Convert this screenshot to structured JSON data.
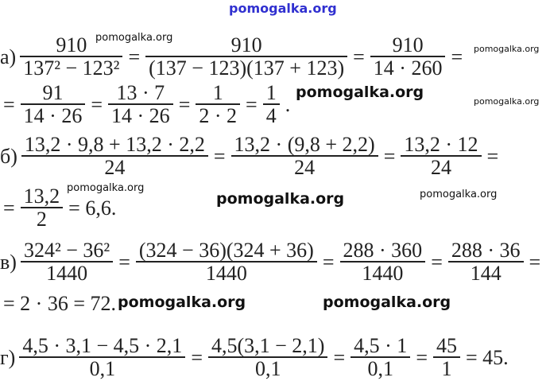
{
  "watermarks": {
    "top": "pomogalka.org",
    "w1": "pomogalka.org",
    "w2": "pomogalka.org",
    "w3": "pomogalka.org",
    "w4": "pomogalka.org",
    "w5": "pomogalka.org",
    "w6": "pomogalka.org",
    "w7": "pomogalka.org",
    "w8": "pomogalka.org",
    "w9": "pomogalka.org"
  },
  "rows": [
    {
      "label": "а)",
      "tokens": [
        {
          "num": "910",
          "den": "137² − 123²"
        },
        "=",
        {
          "num": "910",
          "den": "(137 − 123)(137 + 123)"
        },
        "=",
        {
          "num": "910",
          "den": "14 · 260"
        },
        "="
      ]
    },
    {
      "label": "",
      "tokens": [
        "=",
        {
          "num": "91",
          "den": "14 · 26"
        },
        "=",
        {
          "num": "13 · 7",
          "den": "14 · 26"
        },
        "=",
        {
          "num": "1",
          "den": "2 · 2"
        },
        "=",
        {
          "num": "1",
          "den": "4"
        },
        "."
      ]
    },
    {
      "label": "б)",
      "tokens": [
        {
          "num": "13,2 · 9,8 + 13,2 · 2,2",
          "den": "24"
        },
        "=",
        {
          "num": "13,2 · (9,8 + 2,2)",
          "den": "24"
        },
        "=",
        {
          "num": "13,2 · 12",
          "den": "24"
        },
        "="
      ]
    },
    {
      "label": "",
      "tokens": [
        "=",
        {
          "num": "13,2",
          "den": "2"
        },
        "= 6,6."
      ]
    },
    {
      "label": "в)",
      "tokens": [
        {
          "num": "324² − 36²",
          "den": "1440"
        },
        "=",
        {
          "num": "(324 − 36)(324 + 36)",
          "den": "1440"
        },
        "=",
        {
          "num": "288 · 360",
          "den": "1440"
        },
        "=",
        {
          "num": "288 · 36",
          "den": "144"
        },
        "="
      ]
    },
    {
      "label": "",
      "tokens": [
        "= 2 · 36 = 72."
      ]
    },
    {
      "label": "г)",
      "tokens": [
        {
          "num": "4,5 · 3,1 − 4,5 · 2,1",
          "den": "0,1"
        },
        "=",
        {
          "num": "4,5(3,1 − 2,1)",
          "den": "0,1"
        },
        "=",
        {
          "num": "4,5 · 1",
          "den": "0,1"
        },
        "=",
        {
          "num": "45",
          "den": "1"
        },
        "= 45."
      ]
    }
  ]
}
